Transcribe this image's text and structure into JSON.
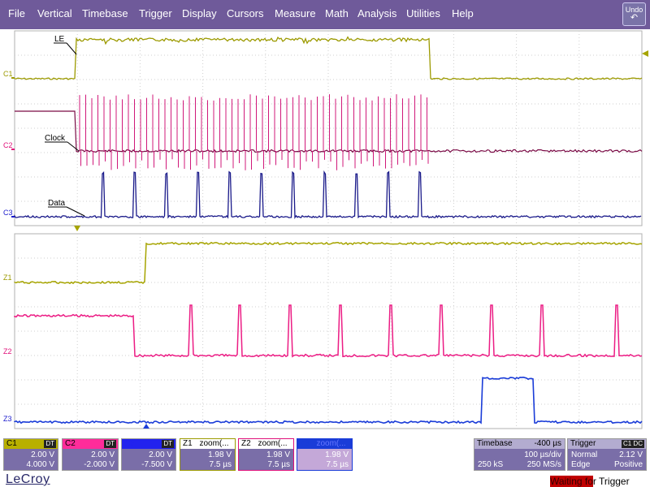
{
  "menu": [
    "File",
    "Vertical",
    "Timebase",
    "Trigger",
    "Display",
    "Cursors",
    "Measure",
    "Math",
    "Analysis",
    "Utilities",
    "Help"
  ],
  "undo_label": "Undo",
  "trace_labels": {
    "c1": "C1",
    "c2": "C2",
    "c3": "C3",
    "z1": "Z1",
    "z2": "Z2",
    "z3": "Z3"
  },
  "annotations": {
    "le": "LE",
    "clock": "Clock",
    "data": "Data"
  },
  "channels": [
    {
      "id": "C1",
      "color": "#9c9a00",
      "hdr_bg": "#b8b000",
      "tag": "DT",
      "v1": "2.00 V",
      "v2": "4.000 V"
    },
    {
      "id": "C2",
      "color": "#e0107a",
      "hdr_bg": "#ff2c9a",
      "tag": "DT",
      "v1": "2.00 V",
      "v2": "-2.000 V"
    },
    {
      "id": "C3",
      "color": "#1a1acc",
      "hdr_bg": "#2222ee",
      "tag": "DT",
      "v1": "2.00 V",
      "v2": "-7.500 V"
    }
  ],
  "zooms": [
    {
      "id": "Z1",
      "kind": "zoom(...",
      "v1": "1.98 V",
      "v2": "7.5 µs"
    },
    {
      "id": "Z2",
      "kind": "zoom(...",
      "v1": "1.98 V",
      "v2": "7.5 µs"
    },
    {
      "id": "Z3",
      "kind": "zoom(...",
      "v1": "1.98 V",
      "v2": "7.5 µs"
    }
  ],
  "timebase": {
    "label": "Timebase",
    "delay": "-400 µs",
    "div": "100 µs/div",
    "samples": "250 kS",
    "rate": "250 MS/s"
  },
  "trigger": {
    "label": "Trigger",
    "tag": "C1 DC",
    "mode": "Normal",
    "level": "2.12 V",
    "type": "Edge",
    "slope": "Positive"
  },
  "brand": "LeCroy",
  "status": {
    "hl": "Waiting fo",
    "rest": "r Trigger"
  },
  "colors": {
    "c1": "#9c9a00",
    "c2": "#e0107a",
    "c2dark": "#7a0a45",
    "c3": "#1a1a8a",
    "z3": "#1a3cd8",
    "menu_bg": "#6f5a9a",
    "panel": "#8a7cb0",
    "grid": "#c8c8c8"
  }
}
